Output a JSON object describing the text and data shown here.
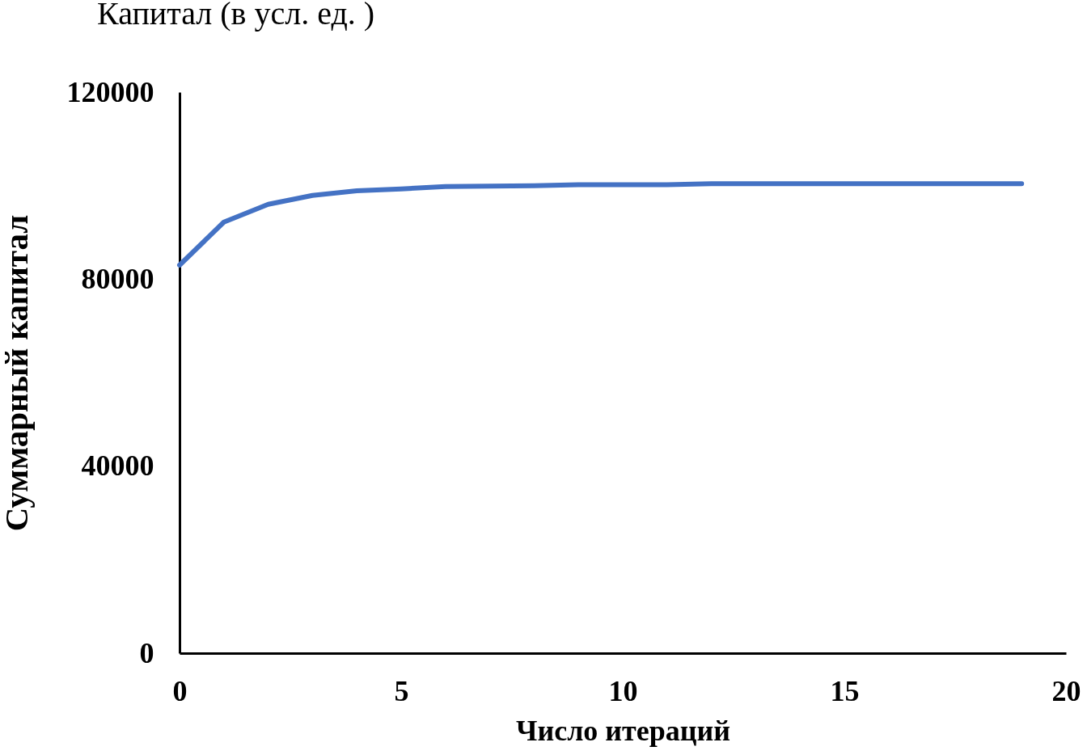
{
  "chart_data": {
    "type": "line",
    "title": "Капитал (в усл. ед. )",
    "xlabel": "Число итераций",
    "ylabel": "Суммарный капитал",
    "x": [
      0,
      1,
      2,
      3,
      4,
      5,
      6,
      7,
      8,
      9,
      10,
      11,
      12,
      13,
      14,
      15,
      16,
      17,
      18,
      19
    ],
    "series": [
      {
        "color": "#4472c4",
        "values": [
          83000,
          92200,
          96000,
          97900,
          98900,
          99300,
          99800,
          99900,
          100000,
          100200,
          100200,
          100200,
          100400,
          100400,
          100400,
          100400,
          100400,
          100400,
          100400,
          100400
        ]
      }
    ],
    "xlim": [
      0,
      20
    ],
    "xticks": [
      0,
      5,
      10,
      15,
      20
    ],
    "ylim": [
      0,
      120000
    ],
    "yticks": [
      0,
      40000,
      80000,
      120000
    ],
    "grid": false,
    "marker": "none",
    "line_style": "solid"
  }
}
